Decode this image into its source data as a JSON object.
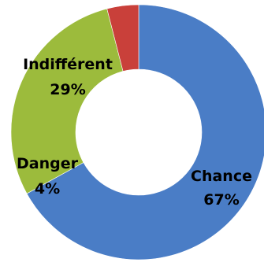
{
  "chart_data": {
    "type": "pie",
    "variant": "donut",
    "title": "",
    "categories": [
      "Chance",
      "Indifférent",
      "Danger"
    ],
    "values": [
      67,
      29,
      4
    ],
    "value_labels": [
      "67%",
      "29%",
      "4%"
    ],
    "colors": [
      "#4a7dc6",
      "#9cbb3c",
      "#c9403a"
    ],
    "start_angle_deg": 0,
    "direction": "clockwise",
    "legend": "none",
    "data_labels": "on-slice"
  }
}
